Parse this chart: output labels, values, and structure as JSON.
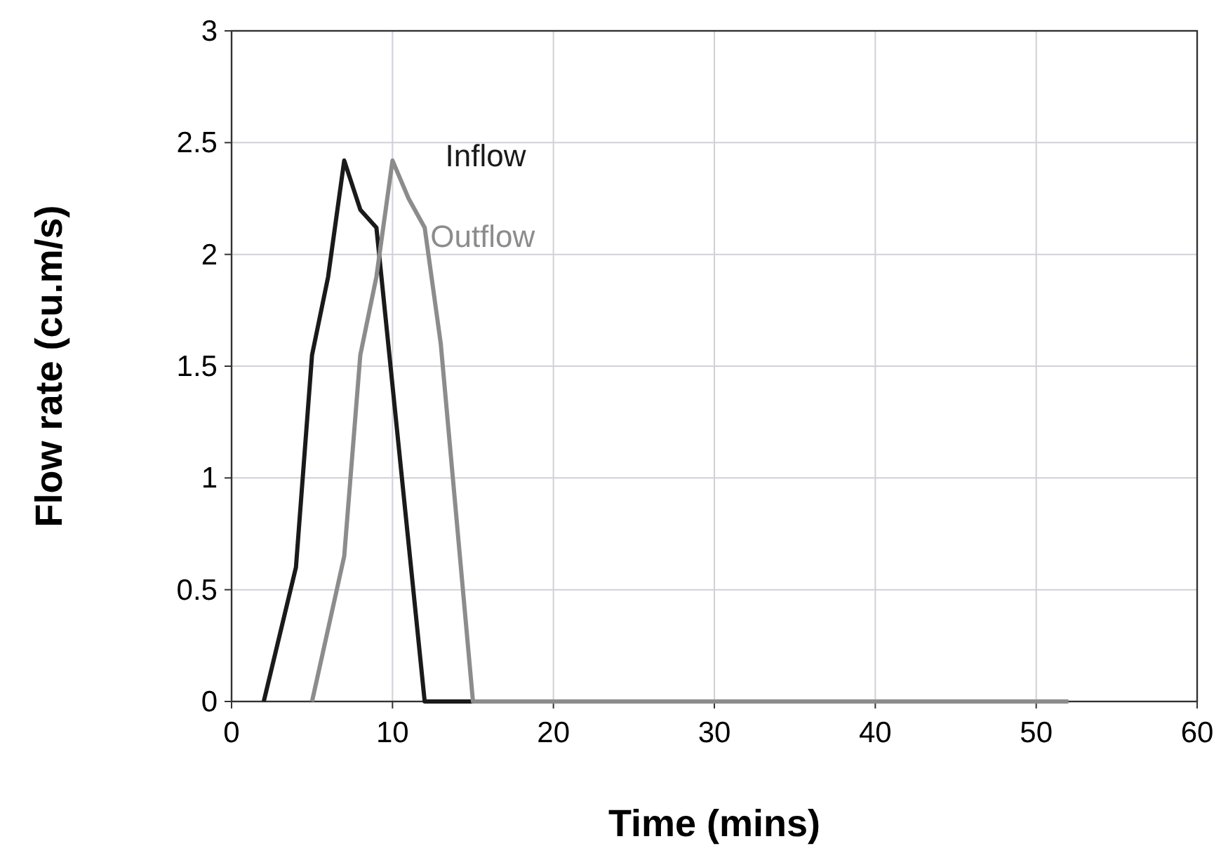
{
  "chart_data": {
    "type": "line",
    "xlabel": "Time (mins)",
    "ylabel": "Flow rate (cu.m/s)",
    "xlim": [
      0,
      60
    ],
    "xticks": [
      0,
      10,
      20,
      30,
      40,
      50,
      60
    ],
    "ylim": [
      0,
      3
    ],
    "yticks": [
      0,
      0.5,
      1,
      1.5,
      2,
      2.5,
      3
    ],
    "grid": true,
    "legend": false,
    "marker": "none",
    "line_style": "solid",
    "series": [
      {
        "name": "Inflow",
        "color": "#1a1a1a",
        "x": [
          2,
          4,
          5,
          6,
          7,
          8,
          9,
          12,
          15
        ],
        "values": [
          0,
          0.6,
          1.55,
          1.9,
          2.42,
          2.2,
          2.12,
          0,
          0
        ]
      },
      {
        "name": "Outflow",
        "color": "#8c8c8c",
        "x": [
          5,
          7,
          8,
          9,
          10,
          11,
          12,
          13,
          15,
          52
        ],
        "values": [
          0,
          0.65,
          1.55,
          1.9,
          2.42,
          2.25,
          2.12,
          1.6,
          0,
          0
        ]
      }
    ]
  }
}
